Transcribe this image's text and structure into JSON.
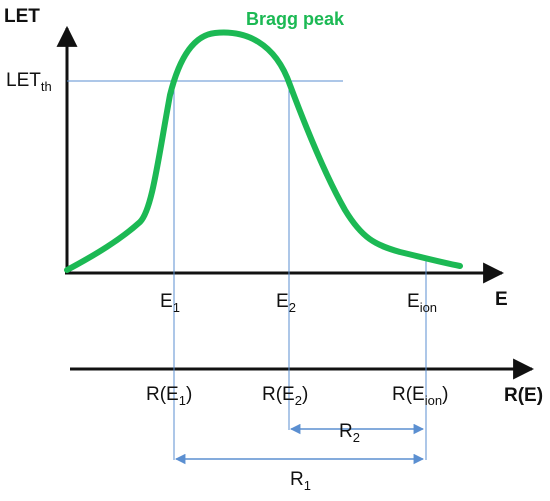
{
  "diagram": {
    "y_axis_label": "LET",
    "x_axis_label": "E",
    "range_axis_label": "R(E)",
    "curve_label": "Bragg peak",
    "threshold_label": {
      "main": "LET",
      "sub": "th"
    },
    "energy_ticks": [
      {
        "main": "E",
        "sub": "1"
      },
      {
        "main": "E",
        "sub": "2"
      },
      {
        "main": "E",
        "sub": "ion"
      }
    ],
    "range_ticks": [
      {
        "prefix": "R(E",
        "sub": "1",
        "suffix": ")"
      },
      {
        "prefix": "R(E",
        "sub": "2",
        "suffix": ")"
      },
      {
        "prefix": "R(E",
        "sub": "ion",
        "suffix": ")"
      }
    ],
    "range_spans": [
      {
        "main": "R",
        "sub": "2"
      },
      {
        "main": "R",
        "sub": "1"
      }
    ]
  },
  "colors": {
    "curve": "#1cb954",
    "curve_label": "#1cb954",
    "axes": "#111111",
    "guides": "#5b8fd1",
    "text": "#111111"
  }
}
